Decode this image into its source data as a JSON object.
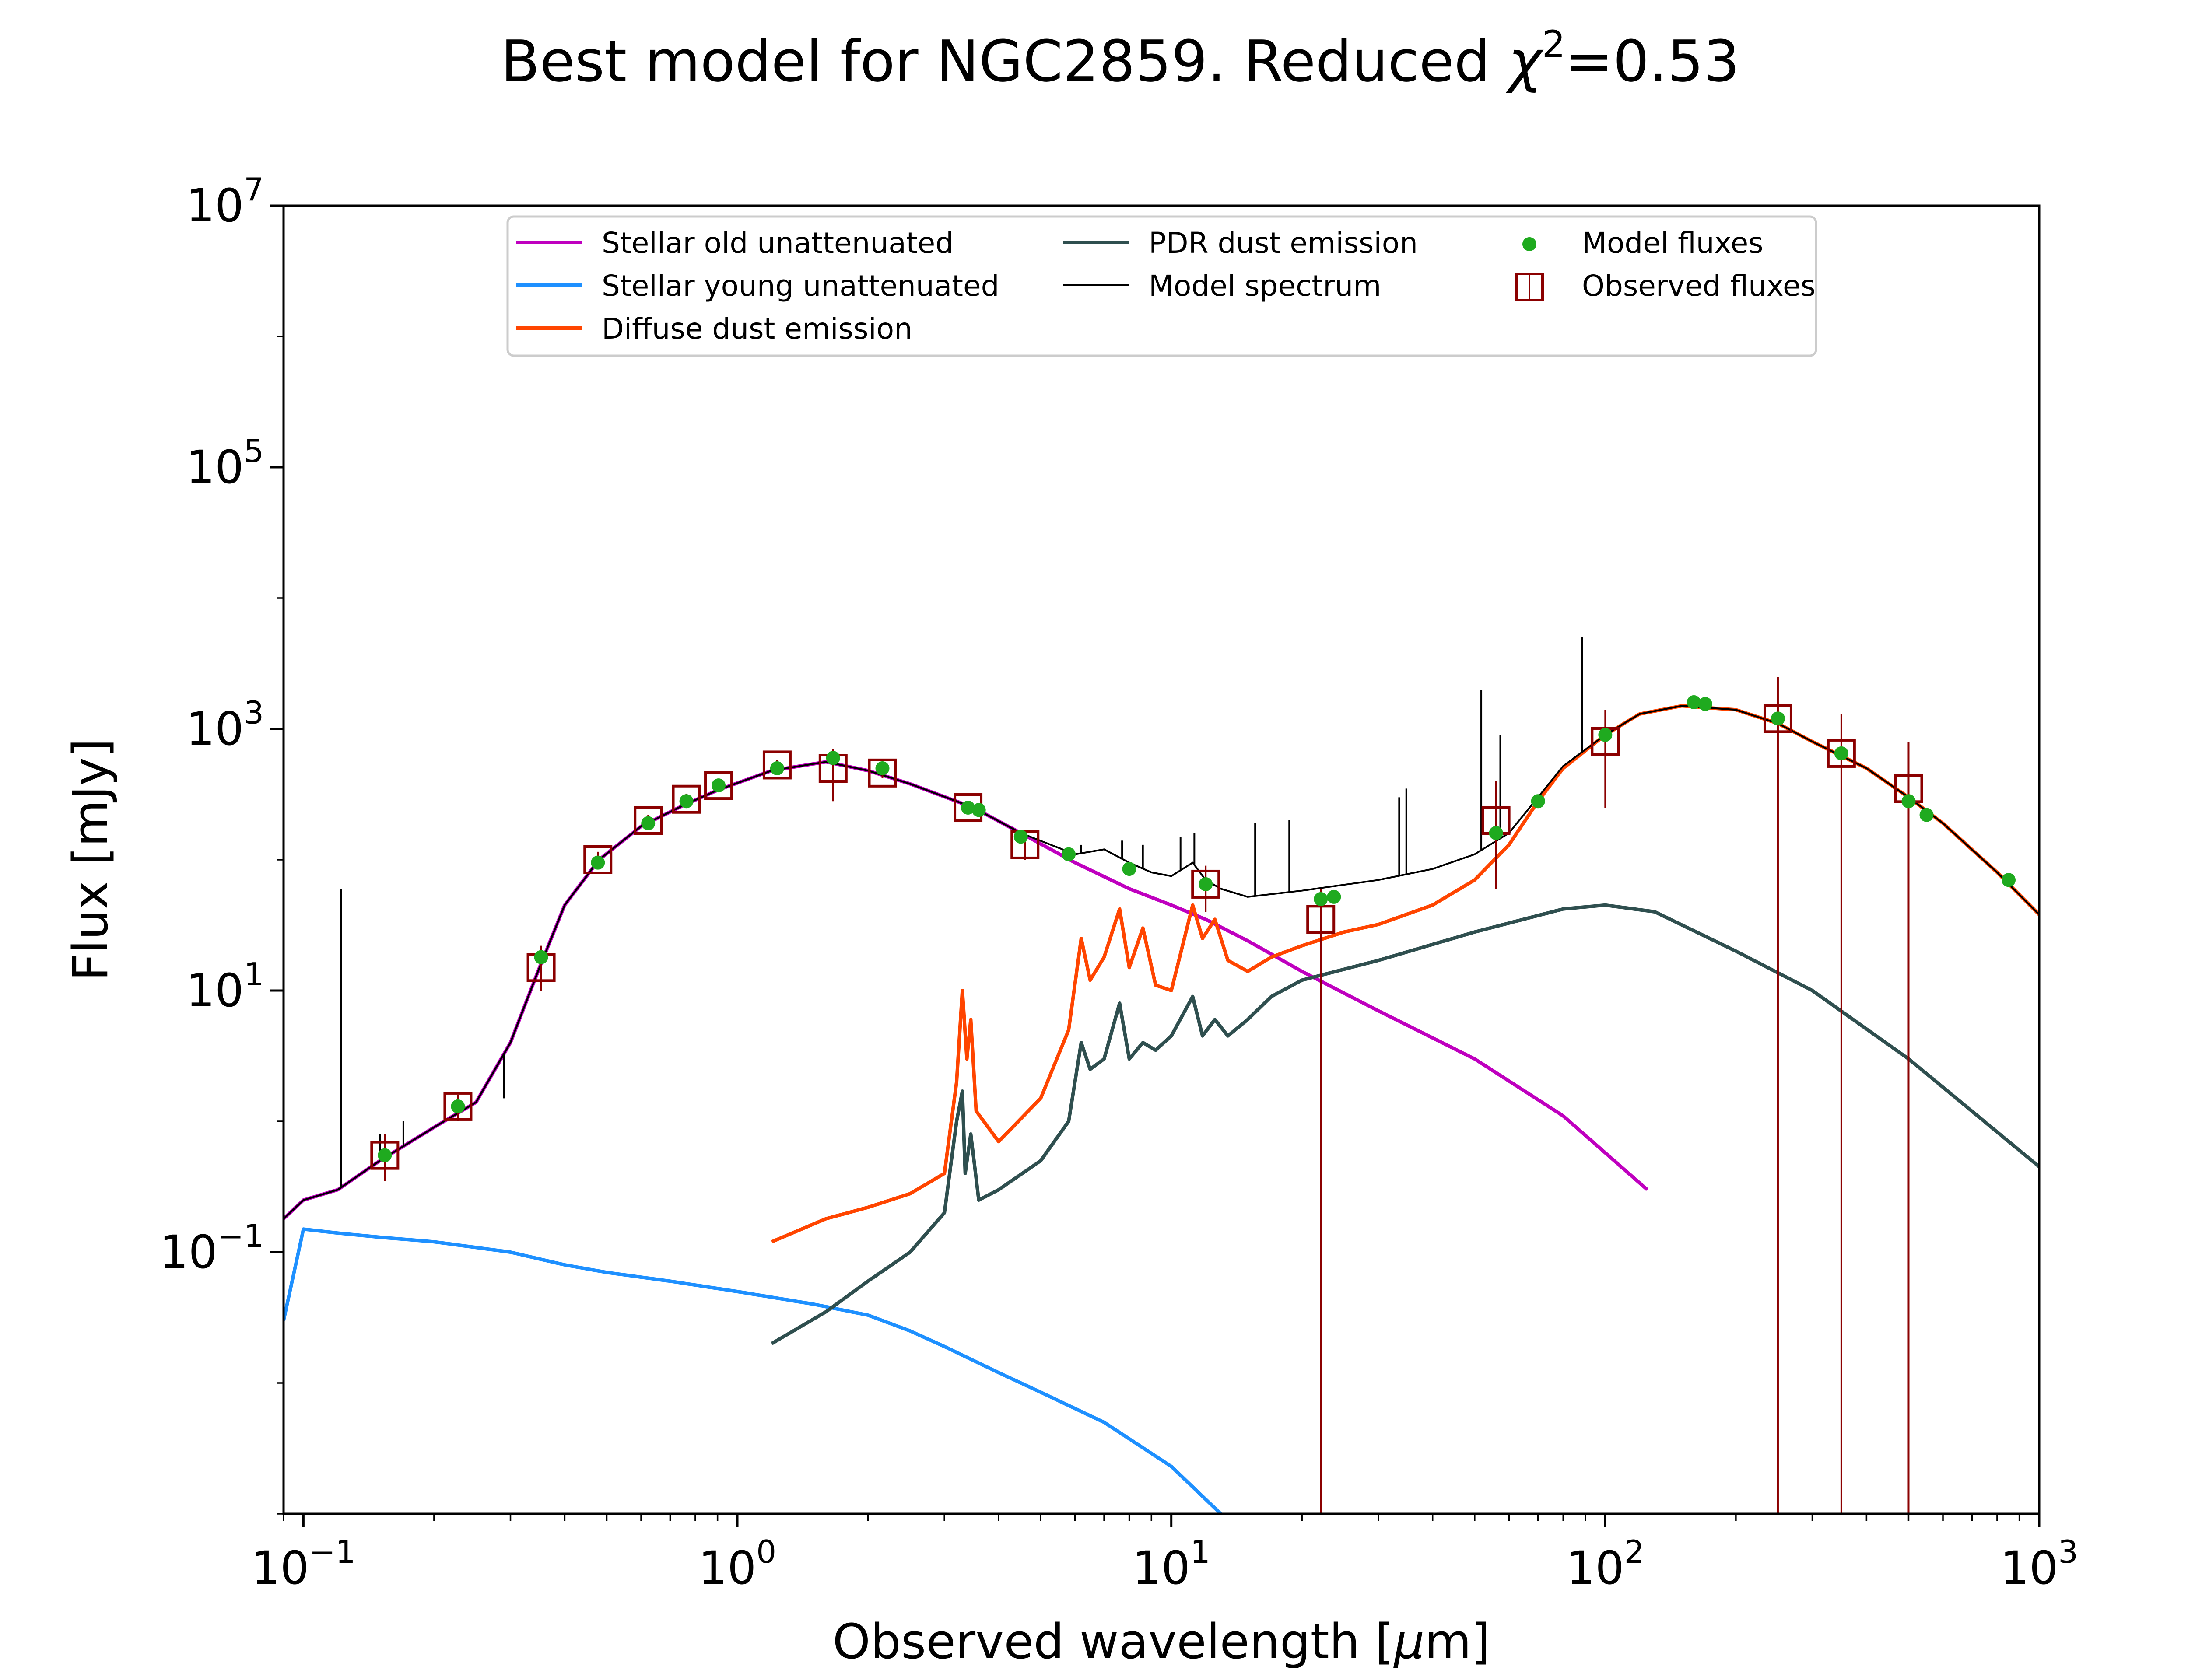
{
  "chart_data": {
    "type": "line",
    "title_main": "Best model for NGC2859. Reduced ",
    "title_chi": "χ",
    "title_exp": "2",
    "title_end": "=0.53",
    "xlabel_main": "Observed wavelength [",
    "xlabel_mu": "μ",
    "xlabel_end": "m]",
    "ylabel": "Flux [mJy]",
    "xscale": "log",
    "yscale": "log",
    "xlim": [
      0.09,
      1000
    ],
    "ylim": [
      0.001,
      10000000
    ],
    "x_ticks": [
      {
        "value": 0.1,
        "base": "10",
        "exp": "−1"
      },
      {
        "value": 1,
        "base": "10",
        "exp": "0"
      },
      {
        "value": 10,
        "base": "10",
        "exp": "1"
      },
      {
        "value": 100,
        "base": "10",
        "exp": "2"
      },
      {
        "value": 1000,
        "base": "10",
        "exp": "3"
      }
    ],
    "y_ticks": [
      {
        "value": 0.1,
        "base": "10",
        "exp": "−1"
      },
      {
        "value": 10,
        "base": "10",
        "exp": "1"
      },
      {
        "value": 1000,
        "base": "10",
        "exp": "3"
      },
      {
        "value": 100000,
        "base": "10",
        "exp": "5"
      },
      {
        "value": 10000000,
        "base": "10",
        "exp": "7"
      }
    ],
    "legend_position": "top-center",
    "legend": [
      {
        "label": "Stellar old unattenuated",
        "color": "#bf00bf",
        "kind": "line"
      },
      {
        "label": "Stellar young unattenuated",
        "color": "#1e90ff",
        "kind": "line"
      },
      {
        "label": "Diffuse dust emission",
        "color": "#ff4500",
        "kind": "line"
      },
      {
        "label": "PDR dust emission",
        "color": "#2f4f4f",
        "kind": "line"
      },
      {
        "label": "Model spectrum",
        "color": "#000000",
        "kind": "thinline"
      },
      {
        "label": "Model fluxes",
        "color": "#1faa1f",
        "kind": "dot"
      },
      {
        "label": "Observed fluxes",
        "color": "#8b0000",
        "kind": "square"
      }
    ],
    "series": [
      {
        "name": "Stellar old unattenuated",
        "color": "#bf00bf",
        "points": [
          [
            0.09,
            0.18
          ],
          [
            0.1,
            0.25
          ],
          [
            0.12,
            0.3
          ],
          [
            0.15,
            0.5
          ],
          [
            0.2,
            0.9
          ],
          [
            0.25,
            1.4
          ],
          [
            0.3,
            4
          ],
          [
            0.35,
            15
          ],
          [
            0.4,
            45
          ],
          [
            0.48,
            100
          ],
          [
            0.6,
            180
          ],
          [
            0.75,
            260
          ],
          [
            0.9,
            340
          ],
          [
            1.2,
            480
          ],
          [
            1.6,
            560
          ],
          [
            2.0,
            480
          ],
          [
            2.5,
            380
          ],
          [
            3.5,
            250
          ],
          [
            4.5,
            160
          ],
          [
            6,
            95
          ],
          [
            8,
            60
          ],
          [
            10,
            45
          ],
          [
            12,
            35
          ],
          [
            15,
            24
          ],
          [
            20,
            14
          ],
          [
            30,
            7
          ],
          [
            50,
            3
          ],
          [
            80,
            1.1
          ],
          [
            125,
            0.3
          ]
        ]
      },
      {
        "name": "Stellar young unattenuated",
        "color": "#1e90ff",
        "points": [
          [
            0.09,
            0.03
          ],
          [
            0.1,
            0.15
          ],
          [
            0.12,
            0.14
          ],
          [
            0.15,
            0.13
          ],
          [
            0.2,
            0.12
          ],
          [
            0.3,
            0.1
          ],
          [
            0.4,
            0.08
          ],
          [
            0.5,
            0.07
          ],
          [
            0.7,
            0.06
          ],
          [
            1.0,
            0.05
          ],
          [
            1.5,
            0.04
          ],
          [
            2.0,
            0.033
          ],
          [
            2.5,
            0.025
          ],
          [
            3.0,
            0.019
          ],
          [
            4.0,
            0.012
          ],
          [
            5.0,
            0.0085
          ],
          [
            7.0,
            0.005
          ],
          [
            10,
            0.0023
          ],
          [
            13,
            0.001
          ]
        ]
      },
      {
        "name": "Diffuse dust emission",
        "color": "#ff4500",
        "points": [
          [
            1.2,
            0.12
          ],
          [
            1.6,
            0.18
          ],
          [
            2.0,
            0.22
          ],
          [
            2.5,
            0.28
          ],
          [
            3.0,
            0.4
          ],
          [
            3.2,
            2
          ],
          [
            3.3,
            10
          ],
          [
            3.38,
            3
          ],
          [
            3.45,
            6
          ],
          [
            3.55,
            1.2
          ],
          [
            4.0,
            0.7
          ],
          [
            5.0,
            1.5
          ],
          [
            5.8,
            5
          ],
          [
            6.2,
            25
          ],
          [
            6.5,
            12
          ],
          [
            7.0,
            18
          ],
          [
            7.6,
            42
          ],
          [
            8.0,
            15
          ],
          [
            8.6,
            30
          ],
          [
            9.2,
            11
          ],
          [
            10,
            10
          ],
          [
            11.2,
            45
          ],
          [
            11.8,
            25
          ],
          [
            12.6,
            35
          ],
          [
            13.5,
            17
          ],
          [
            15,
            14
          ],
          [
            17,
            18
          ],
          [
            20,
            22
          ],
          [
            25,
            28
          ],
          [
            30,
            32
          ],
          [
            40,
            45
          ],
          [
            50,
            70
          ],
          [
            60,
            130
          ],
          [
            70,
            280
          ],
          [
            80,
            500
          ],
          [
            100,
            900
          ],
          [
            120,
            1300
          ],
          [
            150,
            1500
          ],
          [
            200,
            1400
          ],
          [
            250,
            1100
          ],
          [
            300,
            800
          ],
          [
            400,
            500
          ],
          [
            500,
            300
          ],
          [
            600,
            190
          ],
          [
            800,
            80
          ],
          [
            1000,
            38
          ]
        ]
      },
      {
        "name": "PDR dust emission",
        "color": "#2f4f4f",
        "points": [
          [
            1.2,
            0.02
          ],
          [
            1.6,
            0.035
          ],
          [
            2.0,
            0.06
          ],
          [
            2.5,
            0.1
          ],
          [
            3.0,
            0.2
          ],
          [
            3.2,
            1
          ],
          [
            3.3,
            1.7
          ],
          [
            3.35,
            0.4
          ],
          [
            3.45,
            0.8
          ],
          [
            3.6,
            0.25
          ],
          [
            4.0,
            0.3
          ],
          [
            5.0,
            0.5
          ],
          [
            5.8,
            1
          ],
          [
            6.2,
            4
          ],
          [
            6.5,
            2.5
          ],
          [
            7.0,
            3
          ],
          [
            7.6,
            8
          ],
          [
            8.0,
            3
          ],
          [
            8.6,
            4
          ],
          [
            9.2,
            3.5
          ],
          [
            10,
            4.5
          ],
          [
            11.2,
            9
          ],
          [
            11.8,
            4.5
          ],
          [
            12.6,
            6
          ],
          [
            13.5,
            4.5
          ],
          [
            15,
            6
          ],
          [
            17,
            9
          ],
          [
            20,
            12
          ],
          [
            30,
            17
          ],
          [
            50,
            28
          ],
          [
            80,
            42
          ],
          [
            100,
            45
          ],
          [
            130,
            40
          ],
          [
            200,
            20
          ],
          [
            300,
            10
          ],
          [
            500,
            3
          ],
          [
            1000,
            0.45
          ]
        ]
      },
      {
        "name": "Model spectrum",
        "color": "#000000",
        "points": [
          [
            0.09,
            0.18
          ],
          [
            0.1,
            0.25
          ],
          [
            0.12,
            0.3
          ],
          [
            0.15,
            0.5
          ],
          [
            0.2,
            0.9
          ],
          [
            0.25,
            1.4
          ],
          [
            0.3,
            4
          ],
          [
            0.35,
            15
          ],
          [
            0.4,
            45
          ],
          [
            0.48,
            100
          ],
          [
            0.6,
            180
          ],
          [
            0.75,
            260
          ],
          [
            0.9,
            340
          ],
          [
            1.2,
            480
          ],
          [
            1.6,
            560
          ],
          [
            2.0,
            480
          ],
          [
            2.5,
            380
          ],
          [
            3.5,
            250
          ],
          [
            4.5,
            160
          ],
          [
            6,
            110
          ],
          [
            7,
            120
          ],
          [
            8,
            95
          ],
          [
            9,
            80
          ],
          [
            10,
            75
          ],
          [
            11.2,
            95
          ],
          [
            12,
            70
          ],
          [
            13,
            60
          ],
          [
            15,
            52
          ],
          [
            20,
            58
          ],
          [
            30,
            70
          ],
          [
            40,
            85
          ],
          [
            50,
            110
          ],
          [
            60,
            160
          ],
          [
            70,
            300
          ],
          [
            80,
            520
          ],
          [
            100,
            900
          ],
          [
            120,
            1300
          ],
          [
            150,
            1500
          ],
          [
            200,
            1400
          ],
          [
            250,
            1100
          ],
          [
            300,
            800
          ],
          [
            400,
            500
          ],
          [
            500,
            300
          ],
          [
            600,
            190
          ],
          [
            800,
            80
          ],
          [
            1000,
            38
          ]
        ]
      }
    ],
    "model_spectrum_lines": [
      [
        0.122,
        60
      ],
      [
        0.15,
        0.8
      ],
      [
        0.17,
        1.0
      ],
      [
        0.29,
        1.5
      ],
      [
        6.2,
        130
      ],
      [
        7.7,
        140
      ],
      [
        8.6,
        130
      ],
      [
        10.5,
        150
      ],
      [
        11.3,
        160
      ],
      [
        15.6,
        190
      ],
      [
        18.7,
        200
      ],
      [
        33.5,
        300
      ],
      [
        34.8,
        350
      ],
      [
        51.8,
        2000
      ],
      [
        57.3,
        900
      ],
      [
        88.4,
        5000
      ]
    ],
    "model_fluxes": [
      [
        0.154,
        0.55
      ],
      [
        0.227,
        1.3
      ],
      [
        0.353,
        18
      ],
      [
        0.477,
        95
      ],
      [
        0.623,
        190
      ],
      [
        0.763,
        280
      ],
      [
        0.905,
        370
      ],
      [
        1.235,
        500
      ],
      [
        1.662,
        600
      ],
      [
        2.159,
        500
      ],
      [
        3.4,
        250
      ],
      [
        3.6,
        240
      ],
      [
        4.5,
        150
      ],
      [
        5.8,
        110
      ],
      [
        8.0,
        85
      ],
      [
        12,
        65
      ],
      [
        22.1,
        50
      ],
      [
        23.7,
        52
      ],
      [
        56,
        160
      ],
      [
        70,
        280
      ],
      [
        100,
        900
      ],
      [
        160,
        1600
      ],
      [
        170,
        1550
      ],
      [
        250,
        1200
      ],
      [
        350,
        650
      ],
      [
        500,
        280
      ],
      [
        550,
        220
      ],
      [
        850,
        70
      ]
    ],
    "observed_fluxes": [
      {
        "x": 0.154,
        "y": 0.55,
        "lo": 0.35,
        "hi": 0.8
      },
      {
        "x": 0.227,
        "y": 1.3,
        "lo": 1.0,
        "hi": 1.6
      },
      {
        "x": 0.353,
        "y": 15,
        "lo": 10,
        "hi": 22
      },
      {
        "x": 0.477,
        "y": 100,
        "lo": 85,
        "hi": 115
      },
      {
        "x": 0.623,
        "y": 200,
        "lo": 180,
        "hi": 220
      },
      {
        "x": 0.763,
        "y": 290,
        "lo": 260,
        "hi": 320
      },
      {
        "x": 0.905,
        "y": 370,
        "lo": 340,
        "hi": 400
      },
      {
        "x": 1.235,
        "y": 530,
        "lo": 480,
        "hi": 580
      },
      {
        "x": 1.662,
        "y": 500,
        "lo": 280,
        "hi": 700
      },
      {
        "x": 2.159,
        "y": 460,
        "lo": 420,
        "hi": 500
      },
      {
        "x": 3.4,
        "y": 250,
        "lo": 230,
        "hi": 270
      },
      {
        "x": 4.6,
        "y": 130,
        "lo": 100,
        "hi": 160
      },
      {
        "x": 12,
        "y": 65,
        "lo": 40,
        "hi": 90
      },
      {
        "x": 22.1,
        "y": 35,
        "lo": 0.001,
        "hi": 60
      },
      {
        "x": 56,
        "y": 200,
        "lo": 60,
        "hi": 400
      },
      {
        "x": 100,
        "y": 800,
        "lo": 250,
        "hi": 1400
      },
      {
        "x": 250,
        "y": 1200,
        "lo": 0.001,
        "hi": 2500
      },
      {
        "x": 350,
        "y": 650,
        "lo": 0.001,
        "hi": 1300
      },
      {
        "x": 500,
        "y": 350,
        "lo": 0.001,
        "hi": 800
      }
    ]
  }
}
